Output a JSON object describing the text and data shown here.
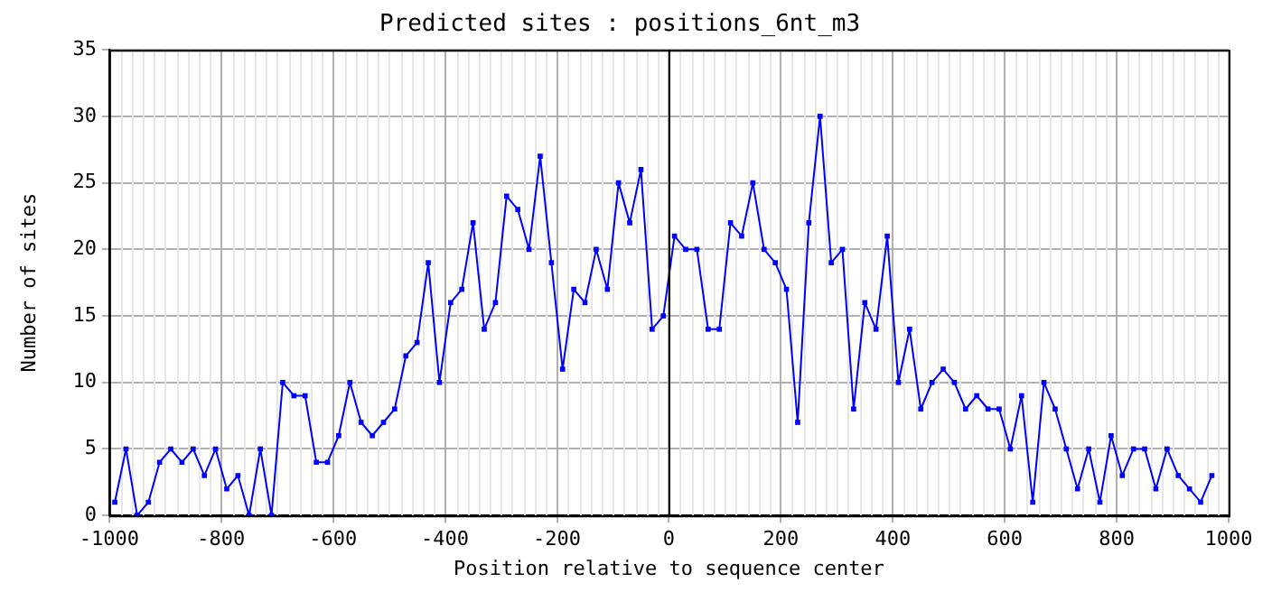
{
  "chart_data": {
    "type": "line",
    "title": "Predicted sites : positions_6nt_m3",
    "xlabel": "Position relative to sequence center",
    "ylabel": "Number of sites",
    "x": [
      -990,
      -970,
      -950,
      -930,
      -910,
      -890,
      -870,
      -850,
      -830,
      -810,
      -790,
      -770,
      -750,
      -730,
      -710,
      -690,
      -670,
      -650,
      -630,
      -610,
      -590,
      -570,
      -550,
      -530,
      -510,
      -490,
      -470,
      -450,
      -430,
      -410,
      -390,
      -370,
      -350,
      -330,
      -310,
      -290,
      -270,
      -250,
      -230,
      -210,
      -190,
      -170,
      -150,
      -130,
      -110,
      -90,
      -70,
      -50,
      -30,
      -10,
      10,
      30,
      50,
      70,
      90,
      110,
      130,
      150,
      170,
      190,
      210,
      230,
      250,
      270,
      290,
      310,
      330,
      350,
      370,
      390,
      410,
      430,
      450,
      470,
      490,
      510,
      530,
      550,
      570,
      590,
      610,
      630,
      650,
      670,
      690,
      710,
      730,
      750,
      770,
      790,
      810,
      830,
      850,
      870,
      890,
      910,
      930,
      950,
      970
    ],
    "series": [
      {
        "color": "#0000ff",
        "values": [
          1,
          5,
          0,
          1,
          4,
          5,
          4,
          5,
          3,
          5,
          2,
          3,
          0,
          5,
          0,
          10,
          9,
          9,
          4,
          4,
          6,
          10,
          7,
          6,
          7,
          8,
          12,
          13,
          19,
          10,
          16,
          17,
          22,
          14,
          16,
          24,
          23,
          20,
          27,
          19,
          11,
          17,
          16,
          20,
          17,
          25,
          22,
          26,
          14,
          15,
          21,
          20,
          20,
          14,
          14,
          22,
          21,
          25,
          20,
          19,
          17,
          7,
          22,
          30,
          19,
          20,
          8,
          16,
          14,
          21,
          10,
          14,
          8,
          10,
          11,
          10,
          8,
          9,
          8,
          8,
          5,
          9,
          1,
          10,
          8,
          5,
          2,
          5,
          1,
          6,
          3,
          5,
          5,
          2,
          5,
          3,
          2,
          1,
          3
        ]
      }
    ],
    "xlim": [
      -1000,
      1000
    ],
    "xticks": [
      -1000,
      -800,
      -600,
      -400,
      -200,
      0,
      200,
      400,
      600,
      800,
      1000
    ],
    "ylim": [
      0,
      35
    ],
    "yticks": [
      0,
      5,
      10,
      15,
      20,
      25,
      30,
      35
    ],
    "ref_lines": [
      {
        "axis": "x",
        "value": 0,
        "color": "#000000"
      }
    ],
    "grid": true,
    "legend": false,
    "marker": "square",
    "line_style": "solid"
  }
}
